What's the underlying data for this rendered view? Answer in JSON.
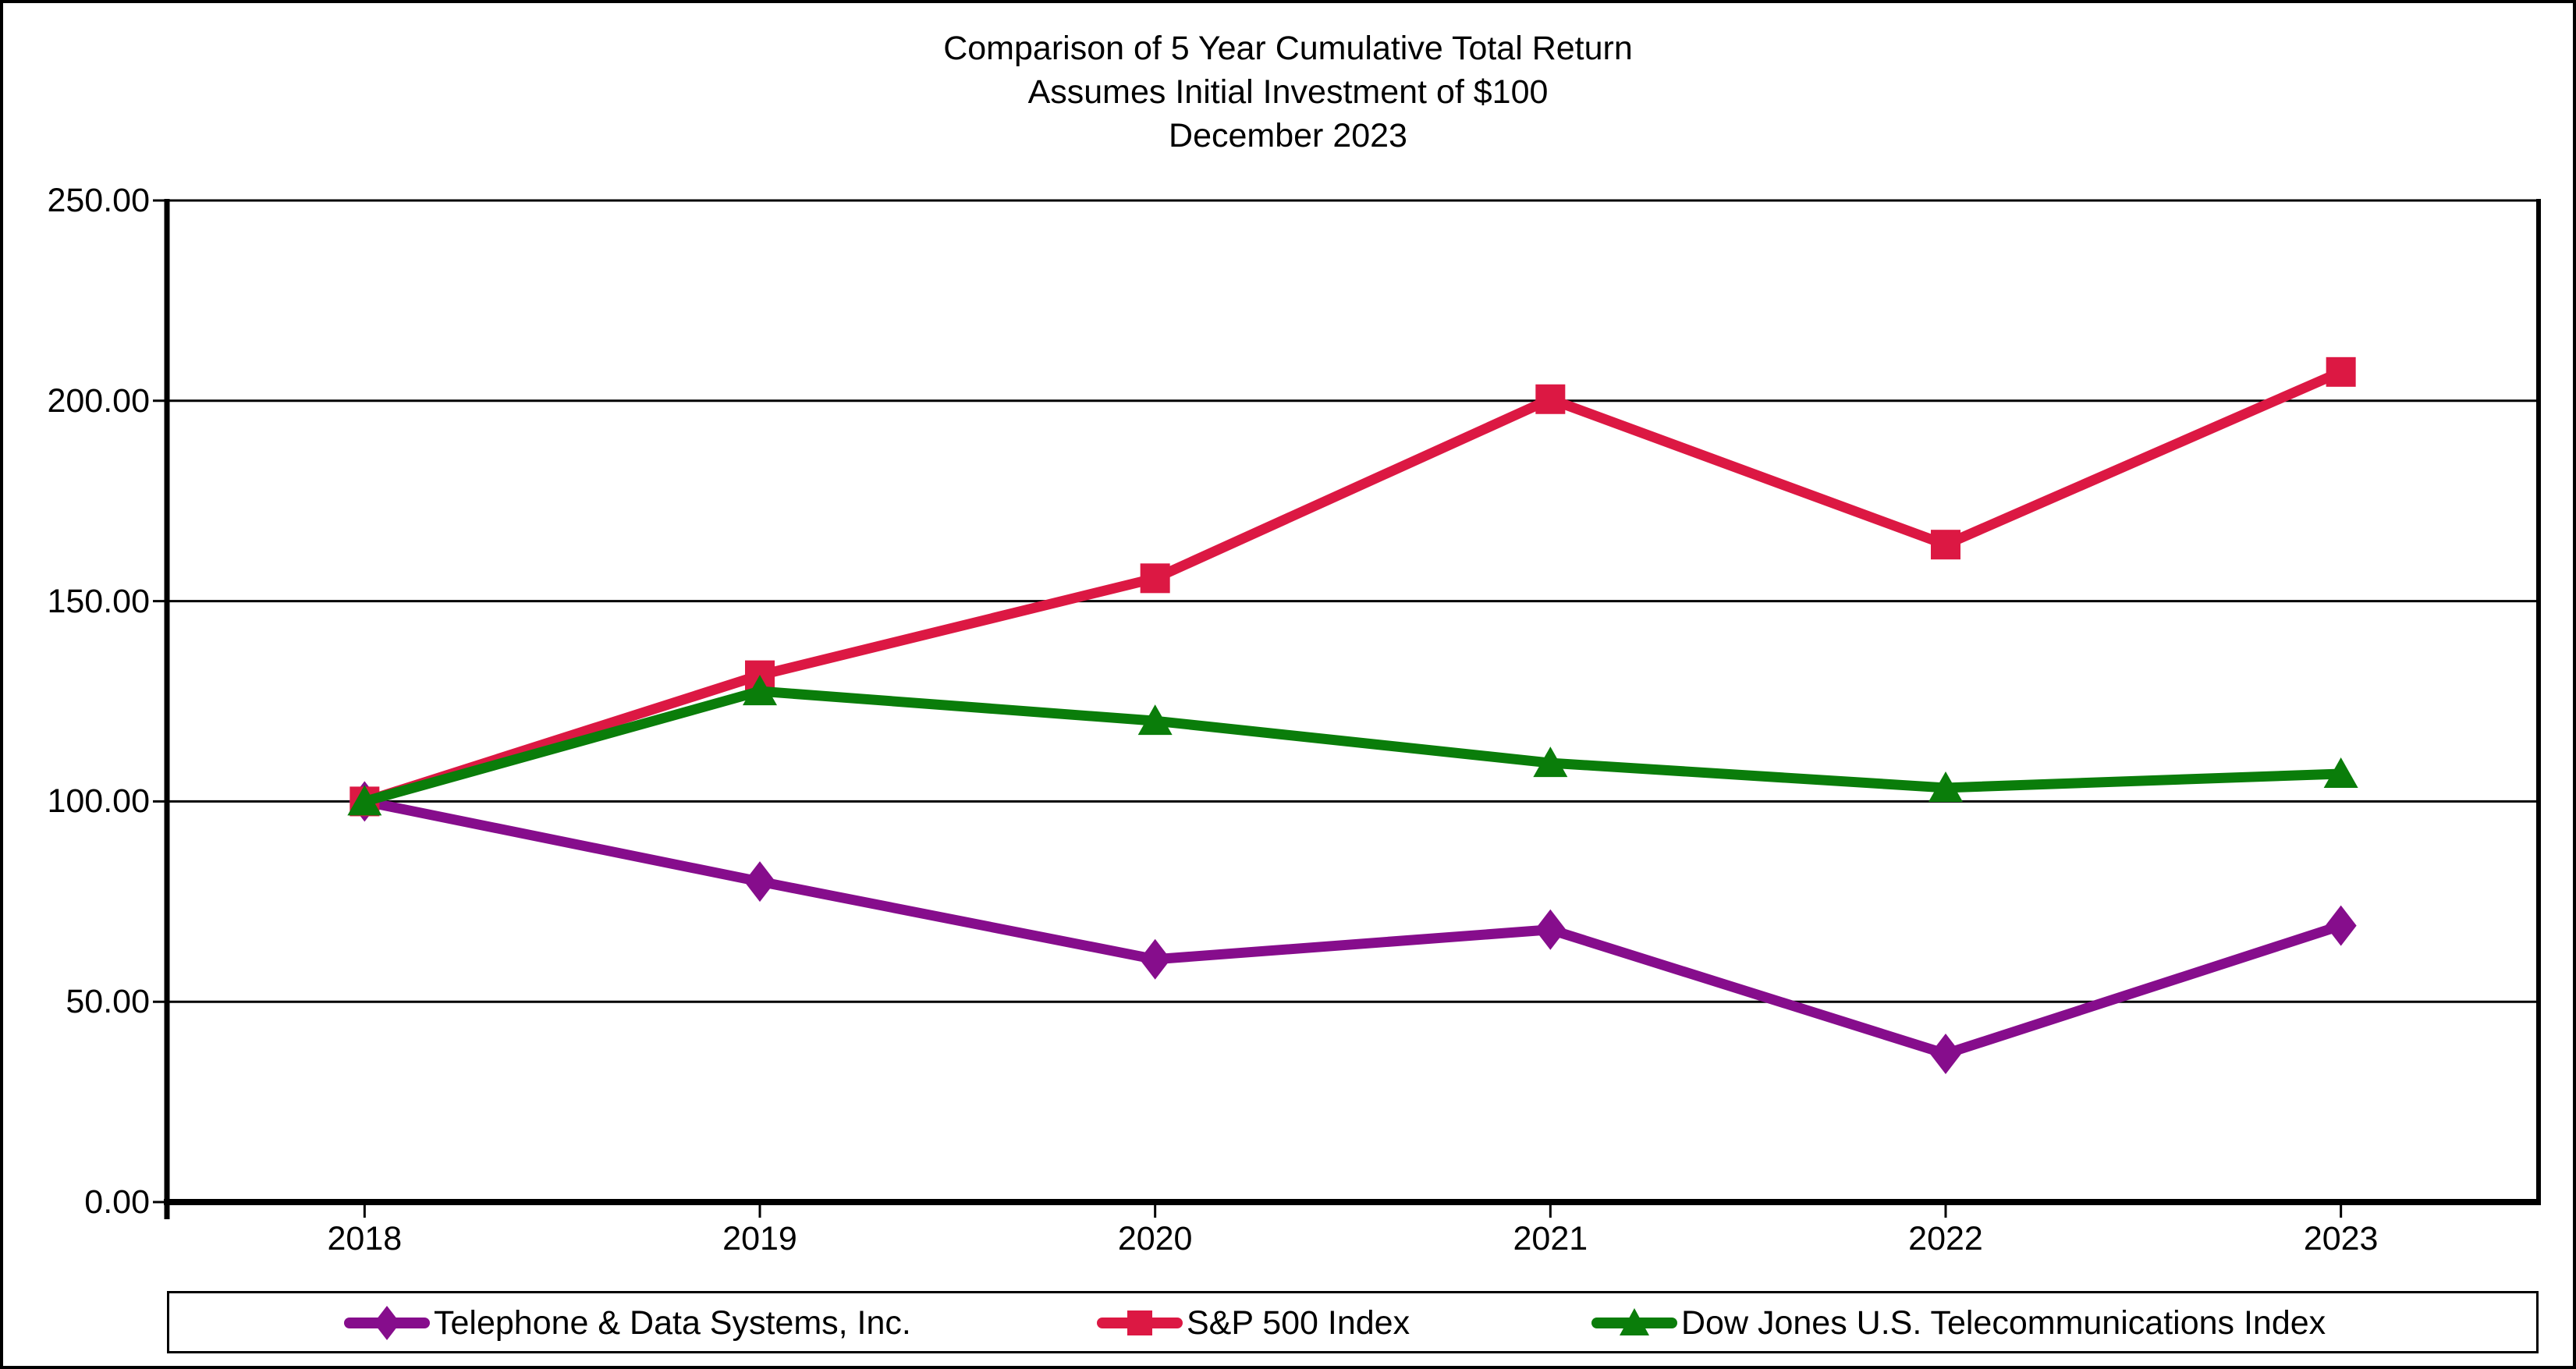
{
  "title": {
    "line1": "Comparison of 5 Year Cumulative Total Return",
    "line2": "Assumes Initial Investment of $100",
    "line3": "December 2023"
  },
  "chart_data": {
    "type": "line",
    "categories": [
      "2018",
      "2019",
      "2020",
      "2021",
      "2022",
      "2023"
    ],
    "series": [
      {
        "name": "Telephone & Data Systems, Inc.",
        "values": [
          100.0,
          80.0,
          60.6,
          68.0,
          37.0,
          69.0
        ],
        "color": "#860D8C",
        "marker": "diamond"
      },
      {
        "name": "S&P 500 Index",
        "values": [
          100.0,
          131.5,
          155.7,
          200.4,
          164.1,
          207.2
        ],
        "color": "#DC1843",
        "marker": "square"
      },
      {
        "name": "Dow Jones U.S. Telecommunications Index",
        "values": [
          100.0,
          127.5,
          120.1,
          109.6,
          103.4,
          106.9
        ],
        "color": "#0A7D0A",
        "marker": "triangle"
      }
    ],
    "ylim": [
      0,
      250
    ],
    "y_tick_values": [
      0,
      50,
      100,
      150,
      200,
      250
    ],
    "y_tick_labels": [
      "0.00",
      "50.00",
      "100.00",
      "150.00",
      "200.00",
      "250.00"
    ],
    "grid": "horizontal",
    "legend_position": "bottom",
    "axis_color": "#000000",
    "background_color": "#FFFFFF"
  }
}
